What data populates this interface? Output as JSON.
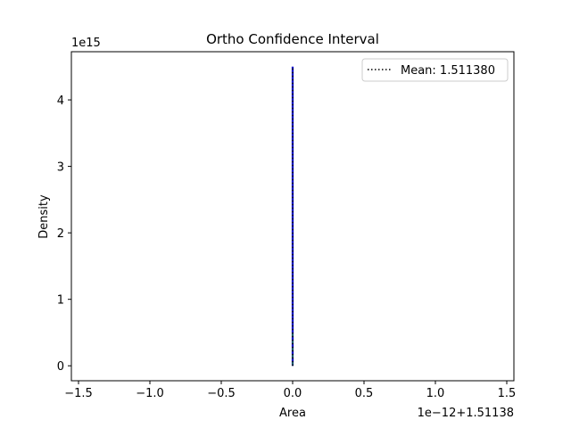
{
  "chart_data": {
    "type": "line",
    "title": "Ortho Confidence Interval",
    "xlabel": "Area",
    "ylabel": "Density",
    "x_offset_label": "1e−12+1.51138",
    "y_offset_label": "1e15",
    "xlim": [
      -1.55,
      1.55
    ],
    "ylim": [
      -0.225,
      4.725
    ],
    "x_ticks": [
      -1.5,
      -1.0,
      -0.5,
      0.0,
      0.5,
      1.0,
      1.5
    ],
    "x_tick_labels": [
      "−1.5",
      "−1.0",
      "−0.5",
      "0.0",
      "0.5",
      "1.0",
      "1.5"
    ],
    "y_ticks": [
      0,
      1,
      2,
      3,
      4
    ],
    "y_tick_labels": [
      "0",
      "1",
      "2",
      "3",
      "4"
    ],
    "grid": false,
    "legend": {
      "placement": "upper right",
      "entries": [
        {
          "label": "Mean: 1.511380",
          "style": "dotted",
          "color": "#000000"
        }
      ]
    },
    "series": [
      {
        "style": "solid",
        "color": "#0000cc",
        "points": [
          {
            "x": 0.0,
            "y": 0.0
          },
          {
            "x": 0.0,
            "y": 4.5
          }
        ]
      },
      {
        "style": "dashed",
        "color": "#2ca02c",
        "points": [
          {
            "x": 0.0,
            "y": 0.0
          },
          {
            "x": 0.0,
            "y": 0.5
          }
        ]
      },
      {
        "name": "Mean: 1.511380",
        "style": "dotted",
        "color": "#000000",
        "points": [
          {
            "x": 0.0,
            "y": 0.0
          },
          {
            "x": 0.0,
            "y": 4.5
          }
        ]
      }
    ]
  }
}
